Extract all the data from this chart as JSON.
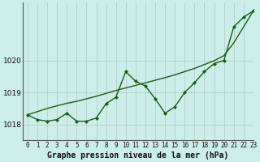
{
  "title": "Graphe pression niveau de la mer (hPa)",
  "bg_color": "#cceee8",
  "line_color": "#1a5c1a",
  "grid_color": "#b0c8c8",
  "xlim": [
    -0.5,
    23
  ],
  "ylim": [
    1017.5,
    1021.8
  ],
  "yticks": [
    1018,
    1019,
    1020
  ],
  "xticks": [
    0,
    1,
    2,
    3,
    4,
    5,
    6,
    7,
    8,
    9,
    10,
    11,
    12,
    13,
    14,
    15,
    16,
    17,
    18,
    19,
    20,
    21,
    22,
    23
  ],
  "hours": [
    0,
    1,
    2,
    3,
    4,
    5,
    6,
    7,
    8,
    9,
    10,
    11,
    12,
    13,
    14,
    15,
    16,
    17,
    18,
    19,
    20,
    21,
    22,
    23
  ],
  "pressure": [
    1018.3,
    1018.15,
    1018.1,
    1018.15,
    1018.35,
    1018.1,
    1018.1,
    1018.2,
    1018.65,
    1018.85,
    1019.65,
    1019.35,
    1019.2,
    1018.8,
    1018.35,
    1018.55,
    1019.0,
    1019.3,
    1019.65,
    1019.9,
    1020.0,
    1021.05,
    1021.35,
    1021.55
  ],
  "trend": [
    1018.3,
    1018.4,
    1018.5,
    1018.58,
    1018.66,
    1018.72,
    1018.8,
    1018.88,
    1018.97,
    1019.06,
    1019.14,
    1019.22,
    1019.3,
    1019.38,
    1019.46,
    1019.55,
    1019.65,
    1019.75,
    1019.87,
    1019.99,
    1020.15,
    1020.55,
    1021.05,
    1021.55
  ],
  "xlabel_fontsize": 7,
  "tick_fontsize": 5.5,
  "ytick_fontsize": 6.5
}
